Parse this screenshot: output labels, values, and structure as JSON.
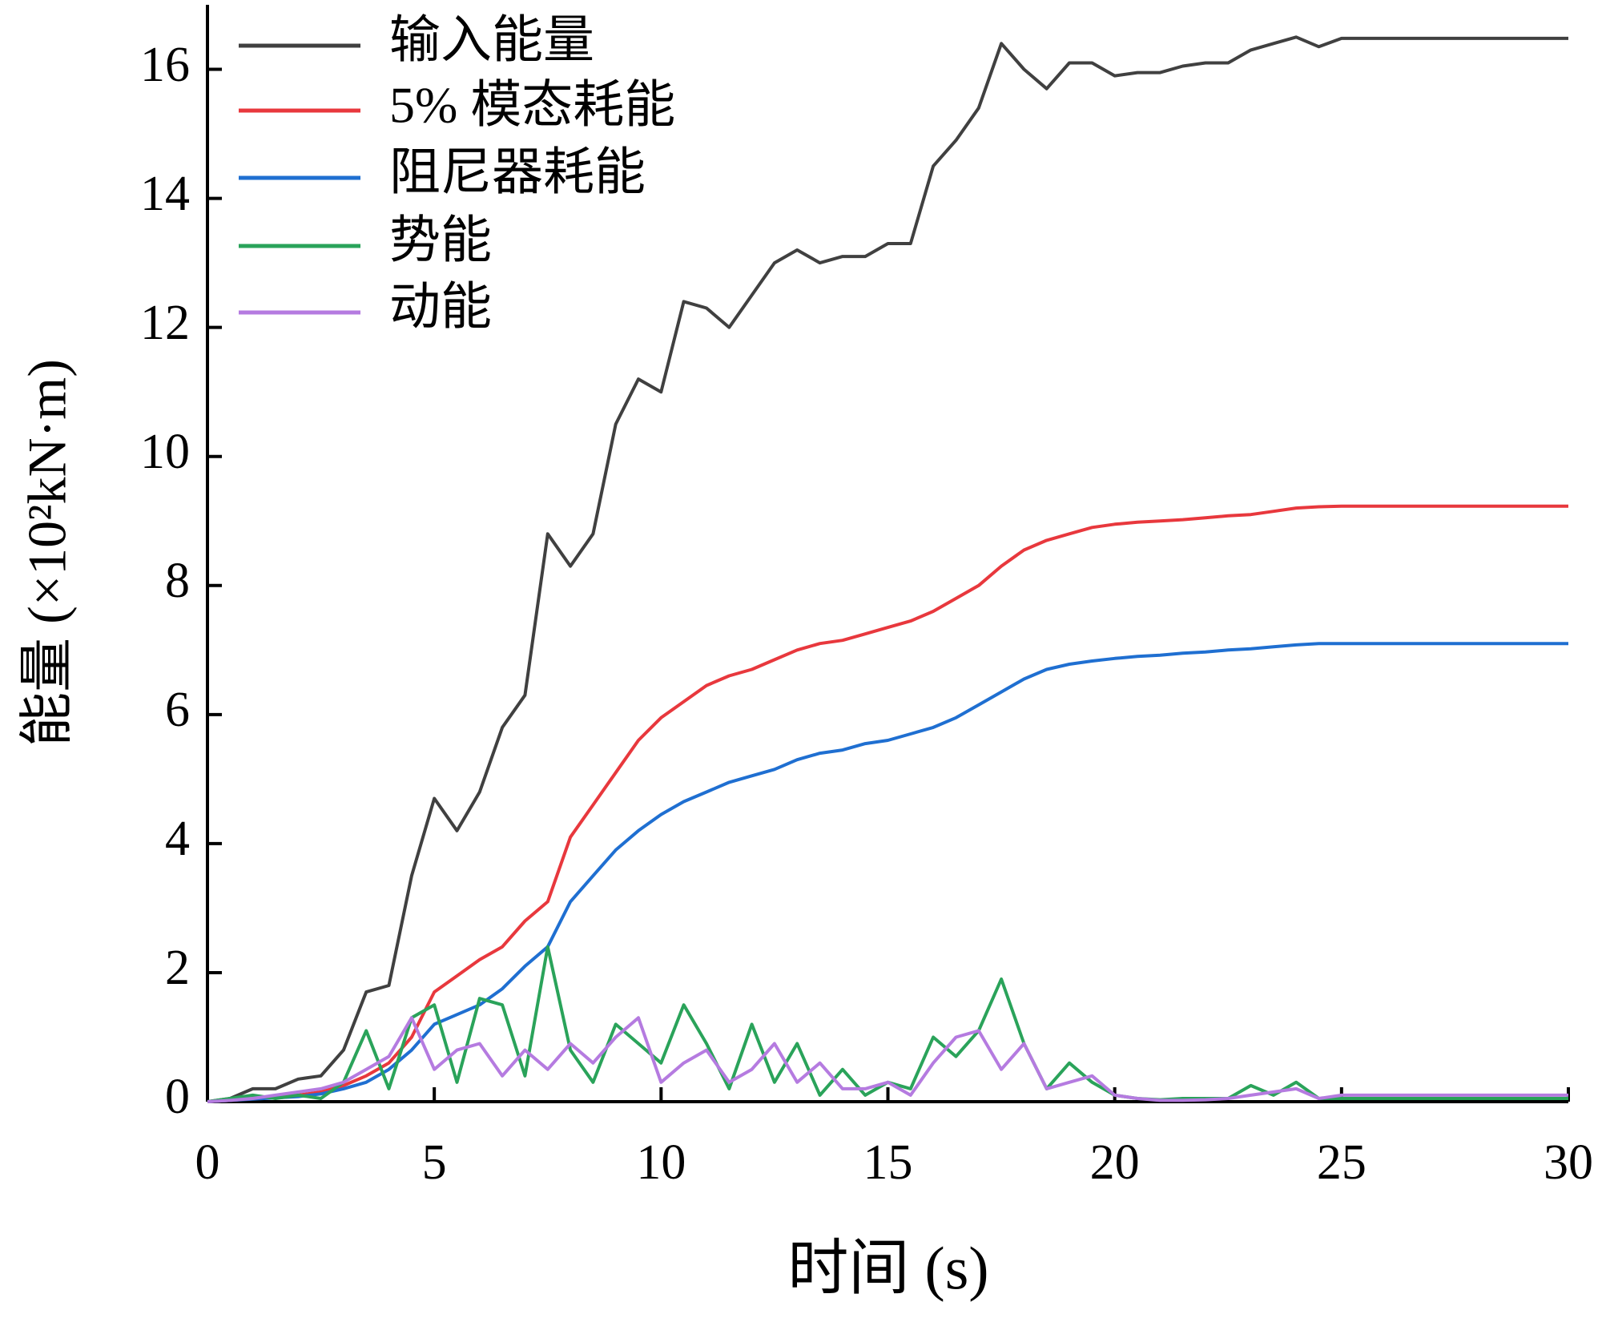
{
  "chart_data": {
    "type": "line",
    "x_label": "时间 (s)",
    "y_label": "能量 (×10²kN·m)",
    "xlim": [
      0,
      30
    ],
    "xticks": [
      0,
      5,
      10,
      15,
      20,
      25,
      30
    ],
    "ylim": [
      0,
      17
    ],
    "yticks": [
      0,
      2,
      4,
      6,
      8,
      10,
      12,
      14,
      16
    ],
    "legend": "upper left",
    "x": [
      0,
      0.5,
      1,
      1.5,
      2,
      2.5,
      3,
      3.5,
      4,
      4.5,
      5,
      5.5,
      6,
      6.5,
      7,
      7.5,
      8,
      8.5,
      9,
      9.5,
      10,
      10.5,
      11,
      11.5,
      12,
      12.5,
      13,
      13.5,
      14,
      14.5,
      15,
      15.5,
      16,
      16.5,
      17,
      17.5,
      18,
      18.5,
      19,
      19.5,
      20,
      20.5,
      21,
      21.5,
      22,
      22.5,
      23,
      23.5,
      24,
      24.5,
      25,
      25.5,
      26,
      26.5,
      27,
      27.5,
      28,
      28.5,
      29,
      29.5,
      30
    ],
    "series": [
      {
        "name": "输入能量",
        "color": "#404040",
        "values": [
          0,
          0.05,
          0.2,
          0.2,
          0.35,
          0.4,
          0.8,
          1.7,
          1.8,
          3.5,
          4.7,
          4.2,
          4.8,
          5.8,
          6.3,
          8.8,
          8.3,
          8.8,
          10.5,
          11.2,
          11.0,
          12.4,
          12.3,
          12.0,
          12.5,
          13.0,
          13.2,
          13.0,
          13.1,
          13.1,
          13.3,
          13.3,
          14.5,
          14.9,
          15.4,
          16.4,
          16.0,
          15.7,
          16.1,
          16.1,
          15.9,
          15.95,
          15.95,
          16.05,
          16.1,
          16.1,
          16.3,
          16.4,
          16.5,
          16.35,
          16.48,
          16.48,
          16.48,
          16.48,
          16.48,
          16.48,
          16.48,
          16.48,
          16.48,
          16.48,
          16.48
        ]
      },
      {
        "name": "5% 模态耗能",
        "color": "#e8383d",
        "values": [
          0,
          0.02,
          0.05,
          0.08,
          0.1,
          0.15,
          0.25,
          0.4,
          0.6,
          1.0,
          1.7,
          1.95,
          2.2,
          2.4,
          2.8,
          3.1,
          4.1,
          4.6,
          5.1,
          5.6,
          5.95,
          6.2,
          6.45,
          6.6,
          6.7,
          6.85,
          7.0,
          7.1,
          7.15,
          7.25,
          7.35,
          7.45,
          7.6,
          7.8,
          8.0,
          8.3,
          8.55,
          8.7,
          8.8,
          8.9,
          8.95,
          8.98,
          9.0,
          9.02,
          9.05,
          9.08,
          9.1,
          9.15,
          9.2,
          9.22,
          9.23,
          9.23,
          9.23,
          9.23,
          9.23,
          9.23,
          9.23,
          9.23,
          9.23,
          9.23,
          9.23
        ]
      },
      {
        "name": "阻尼器耗能",
        "color": "#1f6fd1",
        "values": [
          0,
          0.02,
          0.04,
          0.06,
          0.08,
          0.12,
          0.2,
          0.3,
          0.5,
          0.8,
          1.2,
          1.35,
          1.5,
          1.75,
          2.1,
          2.4,
          3.1,
          3.5,
          3.9,
          4.2,
          4.45,
          4.65,
          4.8,
          4.95,
          5.05,
          5.15,
          5.3,
          5.4,
          5.45,
          5.55,
          5.6,
          5.7,
          5.8,
          5.95,
          6.15,
          6.35,
          6.55,
          6.7,
          6.78,
          6.83,
          6.87,
          6.9,
          6.92,
          6.95,
          6.97,
          7.0,
          7.02,
          7.05,
          7.08,
          7.1,
          7.1,
          7.1,
          7.1,
          7.1,
          7.1,
          7.1,
          7.1,
          7.1,
          7.1,
          7.1,
          7.1
        ]
      },
      {
        "name": "势能",
        "color": "#2aa35a",
        "values": [
          0,
          0.05,
          0.1,
          0.05,
          0.1,
          0.05,
          0.3,
          1.1,
          0.2,
          1.3,
          1.5,
          0.3,
          1.6,
          1.5,
          0.4,
          2.4,
          0.8,
          0.3,
          1.2,
          0.9,
          0.6,
          1.5,
          0.9,
          0.2,
          1.2,
          0.3,
          0.9,
          0.1,
          0.5,
          0.1,
          0.3,
          0.2,
          1.0,
          0.7,
          1.1,
          1.9,
          0.9,
          0.2,
          0.6,
          0.3,
          0.1,
          0.05,
          0.03,
          0.05,
          0.05,
          0.05,
          0.25,
          0.1,
          0.3,
          0.05,
          0.05,
          0.05,
          0.05,
          0.05,
          0.05,
          0.05,
          0.05,
          0.05,
          0.05,
          0.05,
          0.05
        ]
      },
      {
        "name": "动能",
        "color": "#b57be0",
        "values": [
          0,
          0.02,
          0.05,
          0.1,
          0.15,
          0.2,
          0.3,
          0.5,
          0.7,
          1.3,
          0.5,
          0.8,
          0.9,
          0.4,
          0.8,
          0.5,
          0.9,
          0.6,
          1.0,
          1.3,
          0.3,
          0.6,
          0.8,
          0.3,
          0.5,
          0.9,
          0.3,
          0.6,
          0.2,
          0.2,
          0.3,
          0.1,
          0.6,
          1.0,
          1.1,
          0.5,
          0.9,
          0.2,
          0.3,
          0.4,
          0.1,
          0.05,
          0.02,
          0.02,
          0.03,
          0.05,
          0.1,
          0.15,
          0.2,
          0.05,
          0.1,
          0.1,
          0.1,
          0.1,
          0.1,
          0.1,
          0.1,
          0.1,
          0.1,
          0.1,
          0.1
        ]
      }
    ]
  }
}
